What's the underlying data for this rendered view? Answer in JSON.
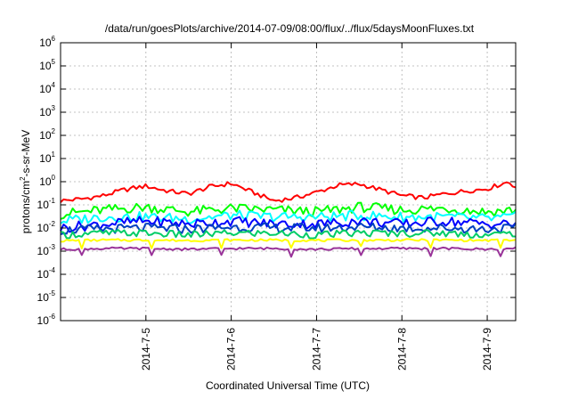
{
  "chart_data": {
    "type": "line",
    "title": "/data/run/goesPlots/archive/2014-07-09/08:00/flux/../flux/5daysMoonFluxes.txt",
    "xlabel": "Coordinated Universal Time (UTC)",
    "ylabel_parts": [
      "protons/cm",
      "2",
      "-s-sr-MeV"
    ],
    "y_scale": "log",
    "ylim": [
      1e-06,
      1000000.0
    ],
    "y_tick_exponents": [
      -6,
      -5,
      -4,
      -3,
      -2,
      -1,
      0,
      1,
      2,
      3,
      4,
      5,
      6
    ],
    "y_tick_base": "10",
    "xlim": [
      "2014-07-04T00:00",
      "2014-07-09T08:00"
    ],
    "x_ticks": [
      "2014-7-5",
      "2014-7-6",
      "2014-7-7",
      "2014-7-8",
      "2014-7-9"
    ],
    "grid": true,
    "legend": "none",
    "series": [
      {
        "color": "#ff0000",
        "x": [
          "2014-07-04T00:00",
          "2014-07-04T06:00",
          "2014-07-04T12:00",
          "2014-07-04T18:00",
          "2014-07-05T00:00",
          "2014-07-05T06:00",
          "2014-07-05T12:00",
          "2014-07-05T18:00",
          "2014-07-06T00:00",
          "2014-07-06T06:00",
          "2014-07-06T12:00",
          "2014-07-06T18:00",
          "2014-07-07T00:00",
          "2014-07-07T06:00",
          "2014-07-07T12:00",
          "2014-07-07T18:00",
          "2014-07-08T00:00",
          "2014-07-08T06:00",
          "2014-07-08T12:00",
          "2014-07-08T18:00",
          "2014-07-09T00:00",
          "2014-07-09T06:00",
          "2014-07-09T08:00"
        ],
        "y": [
          0.15,
          0.18,
          0.25,
          0.45,
          0.65,
          0.4,
          0.3,
          0.6,
          0.85,
          0.35,
          0.15,
          0.2,
          0.35,
          0.7,
          0.8,
          0.45,
          0.25,
          0.2,
          0.3,
          0.4,
          0.5,
          1.0,
          0.6
        ]
      },
      {
        "color": "#00ff00",
        "x": [
          "2014-07-04T00:00",
          "2014-07-04T12:00",
          "2014-07-05T00:00",
          "2014-07-05T12:00",
          "2014-07-06T00:00",
          "2014-07-06T12:00",
          "2014-07-07T00:00",
          "2014-07-07T12:00",
          "2014-07-08T00:00",
          "2014-07-08T12:00",
          "2014-07-09T00:00",
          "2014-07-09T08:00"
        ],
        "y": [
          0.04,
          0.06,
          0.08,
          0.05,
          0.07,
          0.06,
          0.05,
          0.08,
          0.06,
          0.07,
          0.05,
          0.06
        ]
      },
      {
        "color": "#00ffff",
        "x": [
          "2014-07-04T00:00",
          "2014-07-04T12:00",
          "2014-07-05T00:00",
          "2014-07-05T12:00",
          "2014-07-06T00:00",
          "2014-07-06T12:00",
          "2014-07-07T00:00",
          "2014-07-07T12:00",
          "2014-07-08T00:00",
          "2014-07-08T12:00",
          "2014-07-09T00:00",
          "2014-07-09T08:00"
        ],
        "y": [
          0.02,
          0.03,
          0.03,
          0.025,
          0.035,
          0.03,
          0.03,
          0.035,
          0.03,
          0.03,
          0.025,
          0.03
        ]
      },
      {
        "color": "#0000ff",
        "x": [
          "2014-07-04T00:00",
          "2014-07-04T12:00",
          "2014-07-05T00:00",
          "2014-07-05T12:00",
          "2014-07-06T00:00",
          "2014-07-06T12:00",
          "2014-07-07T00:00",
          "2014-07-07T12:00",
          "2014-07-08T00:00",
          "2014-07-08T12:00",
          "2014-07-09T00:00",
          "2014-07-09T08:00"
        ],
        "y": [
          0.01,
          0.015,
          0.02,
          0.015,
          0.02,
          0.015,
          0.015,
          0.02,
          0.015,
          0.02,
          0.015,
          0.015
        ]
      },
      {
        "color": "#0040c0",
        "x": [
          "2014-07-04T00:00",
          "2014-07-04T12:00",
          "2014-07-05T00:00",
          "2014-07-05T12:00",
          "2014-07-06T00:00",
          "2014-07-06T12:00",
          "2014-07-07T00:00",
          "2014-07-07T12:00",
          "2014-07-08T00:00",
          "2014-07-08T12:00",
          "2014-07-09T00:00",
          "2014-07-09T08:00"
        ],
        "y": [
          0.008,
          0.009,
          0.01,
          0.009,
          0.011,
          0.01,
          0.01,
          0.011,
          0.01,
          0.01,
          0.009,
          0.01
        ]
      },
      {
        "color": "#00cc66",
        "x": [
          "2014-07-04T00:00",
          "2014-07-04T12:00",
          "2014-07-05T00:00",
          "2014-07-05T12:00",
          "2014-07-06T00:00",
          "2014-07-06T12:00",
          "2014-07-07T00:00",
          "2014-07-07T12:00",
          "2014-07-08T00:00",
          "2014-07-08T12:00",
          "2014-07-09T00:00",
          "2014-07-09T08:00"
        ],
        "y": [
          0.005,
          0.006,
          0.006,
          0.005,
          0.006,
          0.006,
          0.005,
          0.006,
          0.006,
          0.006,
          0.005,
          0.006
        ]
      },
      {
        "color": "#ffff00",
        "x": [
          "2014-07-04T00:00",
          "2014-07-04T12:00",
          "2014-07-05T00:00",
          "2014-07-05T12:00",
          "2014-07-06T00:00",
          "2014-07-06T12:00",
          "2014-07-07T00:00",
          "2014-07-07T12:00",
          "2014-07-08T00:00",
          "2014-07-08T12:00",
          "2014-07-09T00:00",
          "2014-07-09T08:00"
        ],
        "y": [
          0.0028,
          0.003,
          0.003,
          0.0029,
          0.003,
          0.003,
          0.0029,
          0.003,
          0.003,
          0.003,
          0.0029,
          0.003
        ]
      },
      {
        "color": "#993399",
        "x": [
          "2014-07-04T00:00",
          "2014-07-04T12:00",
          "2014-07-05T00:00",
          "2014-07-05T12:00",
          "2014-07-06T00:00",
          "2014-07-06T12:00",
          "2014-07-07T00:00",
          "2014-07-07T12:00",
          "2014-07-08T00:00",
          "2014-07-08T12:00",
          "2014-07-09T00:00",
          "2014-07-09T08:00"
        ],
        "y": [
          0.0012,
          0.0013,
          0.0013,
          0.0012,
          0.0013,
          0.0013,
          0.0012,
          0.0013,
          0.0013,
          0.0013,
          0.0012,
          0.0013
        ]
      }
    ]
  }
}
